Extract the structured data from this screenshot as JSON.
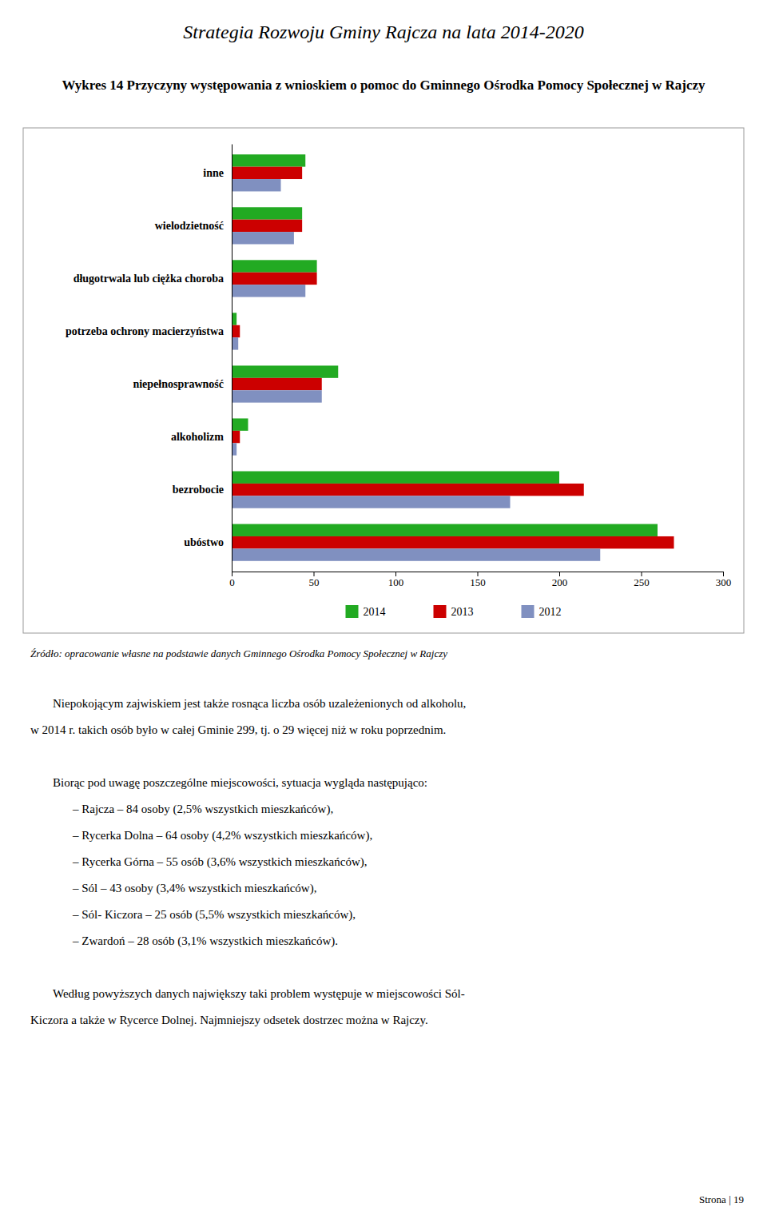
{
  "chart_data": {
    "type": "bar",
    "orientation": "horizontal",
    "title": "Wykres 14 Przyczyny występowania z wnioskiem o pomoc do Gminnego Ośrodka Pomocy Społecznej w Rajczy",
    "categories": [
      "inne",
      "wielodzietność",
      "długotrwala lub ciężka choroba",
      "potrzeba ochrony macierzyństwa",
      "niepełnosprawność",
      "alkoholizm",
      "bezrobocie",
      "ubóstwo"
    ],
    "series": [
      {
        "name": "2014",
        "color": "#22AA22",
        "values": [
          45,
          43,
          52,
          3,
          65,
          10,
          200,
          260
        ]
      },
      {
        "name": "2013",
        "color": "#CC0000",
        "values": [
          43,
          43,
          52,
          5,
          55,
          5,
          215,
          270
        ]
      },
      {
        "name": "2012",
        "color": "#8090C0",
        "values": [
          30,
          38,
          45,
          4,
          55,
          3,
          170,
          225
        ]
      }
    ],
    "xlim": [
      0,
      300
    ],
    "xticks": [
      0,
      50,
      100,
      150,
      200,
      250,
      300
    ],
    "grid": false,
    "legend": "bottom",
    "annotations": [
      "Strategia Rozwoju Gminy Rajcza na lata 2014-2020",
      "Źródło: opracowanie własne na podstawie danych Gminnego Ośrodka Pomocy Społecznej w Rajczy",
      "Strona | 19",
      "Niepokojącym zajwiskiem jest także rosnąca liczba osób uzależenionych od alkoholu,",
      "w 2014 r. takich osób było w całej Gminie 299, tj. o 29 więcej  niż w roku poprzednim.",
      "Biorąc pod uwagę poszczególne miejscowości, sytuacja wygląda następująco:",
      "–  Rajcza – 84 osoby (2,5% wszystkich mieszkańców),",
      "–  Rycerka Dolna – 64 osoby (4,2% wszystkich mieszkańców),",
      "–  Rycerka Górna – 55 osób (3,6% wszystkich mieszkańców),",
      "–  Sól – 43 osoby (3,4% wszystkich mieszkańców),",
      "–  Sól- Kiczora – 25 osób (5,5% wszystkich mieszkańców),",
      "–  Zwardoń – 28 osób (3,1% wszystkich mieszkańców).",
      "Według powyższych danych największy taki problem występuje w miejscowości Sól-",
      "Kiczora a także w Rycerce Dolnej. Najmniejszy odsetek dostrzec można w Rajczy."
    ]
  }
}
